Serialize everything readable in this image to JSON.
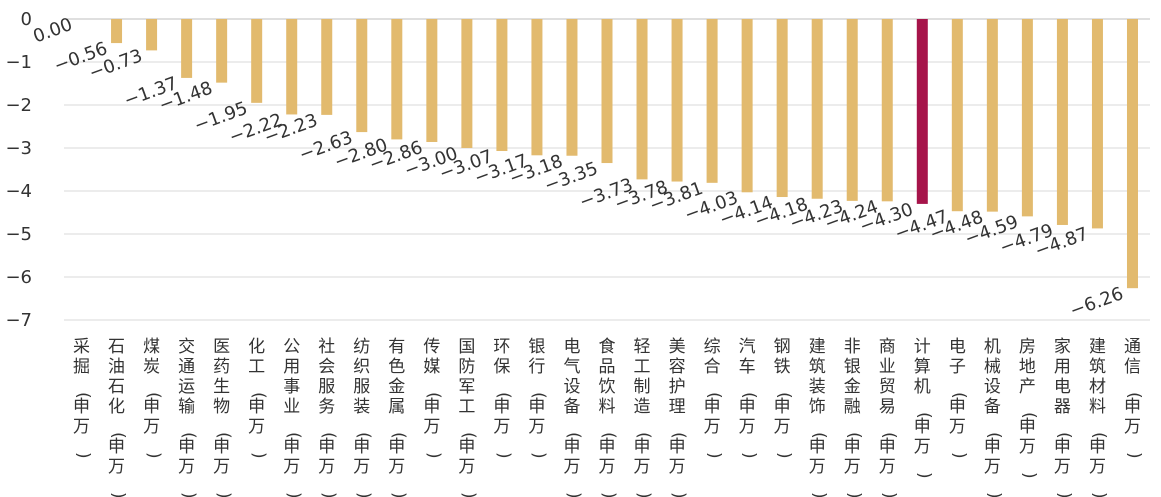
{
  "chart_data": {
    "type": "bar",
    "title": "",
    "xlabel": "",
    "ylabel": "",
    "ylim": [
      -7,
      0
    ],
    "yticks": [
      0,
      -1,
      -2,
      -3,
      -4,
      -5,
      -6,
      -7
    ],
    "ytick_labels": [
      "0",
      "−1",
      "−2",
      "−3",
      "−4",
      "−5",
      "−6",
      "−7"
    ],
    "grid": true,
    "legend": "none",
    "colors": {
      "default": "#E2BA6E",
      "highlight": "#A6144A",
      "grid": "#D9D9D9",
      "axis": "#BFBFBF"
    },
    "highlight_category": "计算机(申万)",
    "categories": [
      "采掘(申万)",
      "石油石化(申万)",
      "煤炭(申万)",
      "交通运输(申万)",
      "医药生物(申万)",
      "化工(申万)",
      "公用事业(申万)",
      "社会服务(申万)",
      "纺织服装(申万)",
      "有色金属(申万)",
      "传媒(申万)",
      "国防军工(申万)",
      "环保(申万)",
      "银行(申万)",
      "电气设备(申万)",
      "食品饮料(申万)",
      "轻工制造(申万)",
      "美容护理(申万)",
      "综合(申万)",
      "汽车(申万)",
      "钢铁(申万)",
      "建筑装饰(申万)",
      "非银金融(申万)",
      "商业贸易(申万)",
      "计算机(申万)",
      "电子(申万)",
      "机械设备(申万)",
      "房地产(申万)",
      "家用电器(申万)",
      "建筑材料(申万)",
      "通信(申万)"
    ],
    "values": [
      0.0,
      -0.56,
      -0.73,
      -1.37,
      -1.48,
      -1.95,
      -2.22,
      -2.23,
      -2.63,
      -2.8,
      -2.86,
      -3.0,
      -3.07,
      -3.17,
      -3.18,
      -3.35,
      -3.73,
      -3.78,
      -3.81,
      -4.03,
      -4.14,
      -4.18,
      -4.23,
      -4.24,
      -4.3,
      -4.47,
      -4.48,
      -4.59,
      -4.79,
      -4.87,
      -6.26
    ],
    "labels": [
      "0.00",
      "−0.56",
      "−0.73",
      "−1.37",
      "−1.48",
      "−1.95",
      "−2.22",
      "−2.23",
      "−2.63",
      "−2.80",
      "−2.86",
      "−3.00",
      "−3.07",
      "−3.17",
      "−3.18",
      "−3.35",
      "−3.73",
      "−3.78",
      "−3.81",
      "−4.03",
      "−4.14",
      "−4.18",
      "−4.23",
      "−4.24",
      "−4.30",
      "−4.47",
      "−4.48",
      "−4.59",
      "−4.79",
      "−4.87",
      "−6.26"
    ]
  }
}
